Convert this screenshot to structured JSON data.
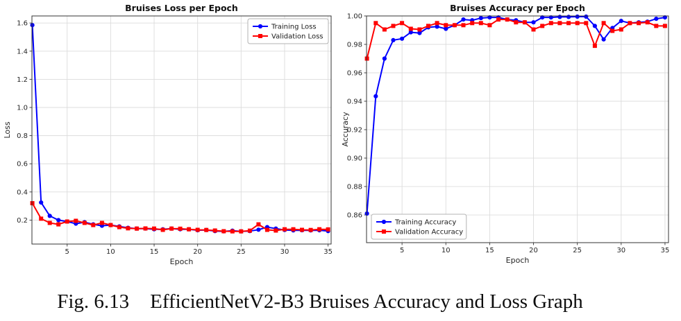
{
  "page": {
    "background": "#ffffff",
    "caption": {
      "label": "Fig. 6.13",
      "text": "EfficientNetV2-B3 Bruises Accuracy and Loss Graph"
    },
    "colors": {
      "training": "#0000ff",
      "validation": "#ff0000",
      "grid": "#dcdcdc",
      "spine": "#333333",
      "tick_text": "#262626",
      "title_text": "#111111"
    }
  },
  "chart_data": [
    {
      "id": "loss",
      "type": "line",
      "title": "Bruises Loss per Epoch",
      "xlabel": "Epoch",
      "ylabel": "Loss",
      "grid": true,
      "legend_position": "upper-right",
      "xlim": [
        0.95,
        35.35
      ],
      "ylim": [
        0.03,
        1.65
      ],
      "xticks": [
        5,
        10,
        15,
        20,
        25,
        30,
        35
      ],
      "xtick_labels": [
        "5",
        "10",
        "15",
        "20",
        "25",
        "30",
        "35"
      ],
      "yticks": [
        0.2,
        0.4,
        0.6,
        0.8,
        1.0,
        1.2,
        1.4,
        1.6
      ],
      "ytick_labels": [
        "0.2",
        "0.4",
        "0.6",
        "0.8",
        "1.0",
        "1.2",
        "1.4",
        "1.6"
      ],
      "x": [
        1,
        2,
        3,
        4,
        5,
        6,
        7,
        8,
        9,
        10,
        11,
        12,
        13,
        14,
        15,
        16,
        17,
        18,
        19,
        20,
        21,
        22,
        23,
        24,
        25,
        26,
        27,
        28,
        29,
        30,
        31,
        32,
        33,
        34,
        35
      ],
      "series": [
        {
          "name": "Training Loss",
          "color": "#0000ff",
          "marker": "circle",
          "values": [
            1.585,
            0.325,
            0.23,
            0.2,
            0.19,
            0.175,
            0.185,
            0.17,
            0.16,
            0.165,
            0.155,
            0.145,
            0.14,
            0.14,
            0.135,
            0.135,
            0.14,
            0.135,
            0.135,
            0.128,
            0.13,
            0.122,
            0.12,
            0.125,
            0.12,
            0.122,
            0.132,
            0.15,
            0.14,
            0.13,
            0.127,
            0.128,
            0.127,
            0.128,
            0.122
          ]
        },
        {
          "name": "Validation Loss",
          "color": "#ff0000",
          "marker": "square",
          "values": [
            0.32,
            0.21,
            0.18,
            0.17,
            0.19,
            0.195,
            0.18,
            0.165,
            0.18,
            0.165,
            0.15,
            0.142,
            0.14,
            0.141,
            0.14,
            0.131,
            0.14,
            0.139,
            0.135,
            0.131,
            0.13,
            0.126,
            0.121,
            0.12,
            0.12,
            0.125,
            0.17,
            0.131,
            0.126,
            0.135,
            0.135,
            0.131,
            0.13,
            0.135,
            0.134
          ]
        }
      ]
    },
    {
      "id": "accuracy",
      "type": "line",
      "title": "Bruises Accuracy per Epoch",
      "xlabel": "Epoch",
      "ylabel": "Accuracy",
      "grid": true,
      "legend_position": "lower-left",
      "xlim": [
        0.95,
        35.4
      ],
      "ylim": [
        0.8405,
        1.0
      ],
      "xticks": [
        5,
        10,
        15,
        20,
        25,
        30,
        35
      ],
      "xtick_labels": [
        "5",
        "10",
        "15",
        "20",
        "25",
        "30",
        "35"
      ],
      "yticks": [
        0.86,
        0.88,
        0.9,
        0.92,
        0.94,
        0.96,
        0.98,
        1.0
      ],
      "ytick_labels": [
        "0.86",
        "0.88",
        "0.90",
        "0.92",
        "0.94",
        "0.96",
        "0.98",
        "1.00"
      ],
      "x": [
        1,
        2,
        3,
        4,
        5,
        6,
        7,
        8,
        9,
        10,
        11,
        12,
        13,
        14,
        15,
        16,
        17,
        18,
        19,
        20,
        21,
        22,
        23,
        24,
        25,
        26,
        27,
        28,
        29,
        30,
        31,
        32,
        33,
        34,
        35
      ],
      "series": [
        {
          "name": "Training Accuracy",
          "color": "#0000ff",
          "marker": "circle",
          "values": [
            0.861,
            0.9435,
            0.97,
            0.983,
            0.984,
            0.9885,
            0.988,
            0.992,
            0.9925,
            0.991,
            0.9935,
            0.9975,
            0.997,
            0.9985,
            0.999,
            0.999,
            0.9975,
            0.997,
            0.9955,
            0.9955,
            0.999,
            0.999,
            0.9993,
            0.9993,
            0.9995,
            0.9995,
            0.993,
            0.9835,
            0.9915,
            0.9965,
            0.995,
            0.9955,
            0.996,
            0.998,
            0.999
          ]
        },
        {
          "name": "Validation Accuracy",
          "color": "#ff0000",
          "marker": "square",
          "values": [
            0.97,
            0.995,
            0.9905,
            0.993,
            0.995,
            0.991,
            0.9905,
            0.993,
            0.995,
            0.9935,
            0.9935,
            0.9935,
            0.995,
            0.995,
            0.9935,
            0.9975,
            0.9975,
            0.9955,
            0.9955,
            0.9905,
            0.993,
            0.995,
            0.995,
            0.995,
            0.995,
            0.995,
            0.979,
            0.995,
            0.9895,
            0.9905,
            0.995,
            0.995,
            0.9955,
            0.993,
            0.993
          ]
        }
      ]
    }
  ]
}
